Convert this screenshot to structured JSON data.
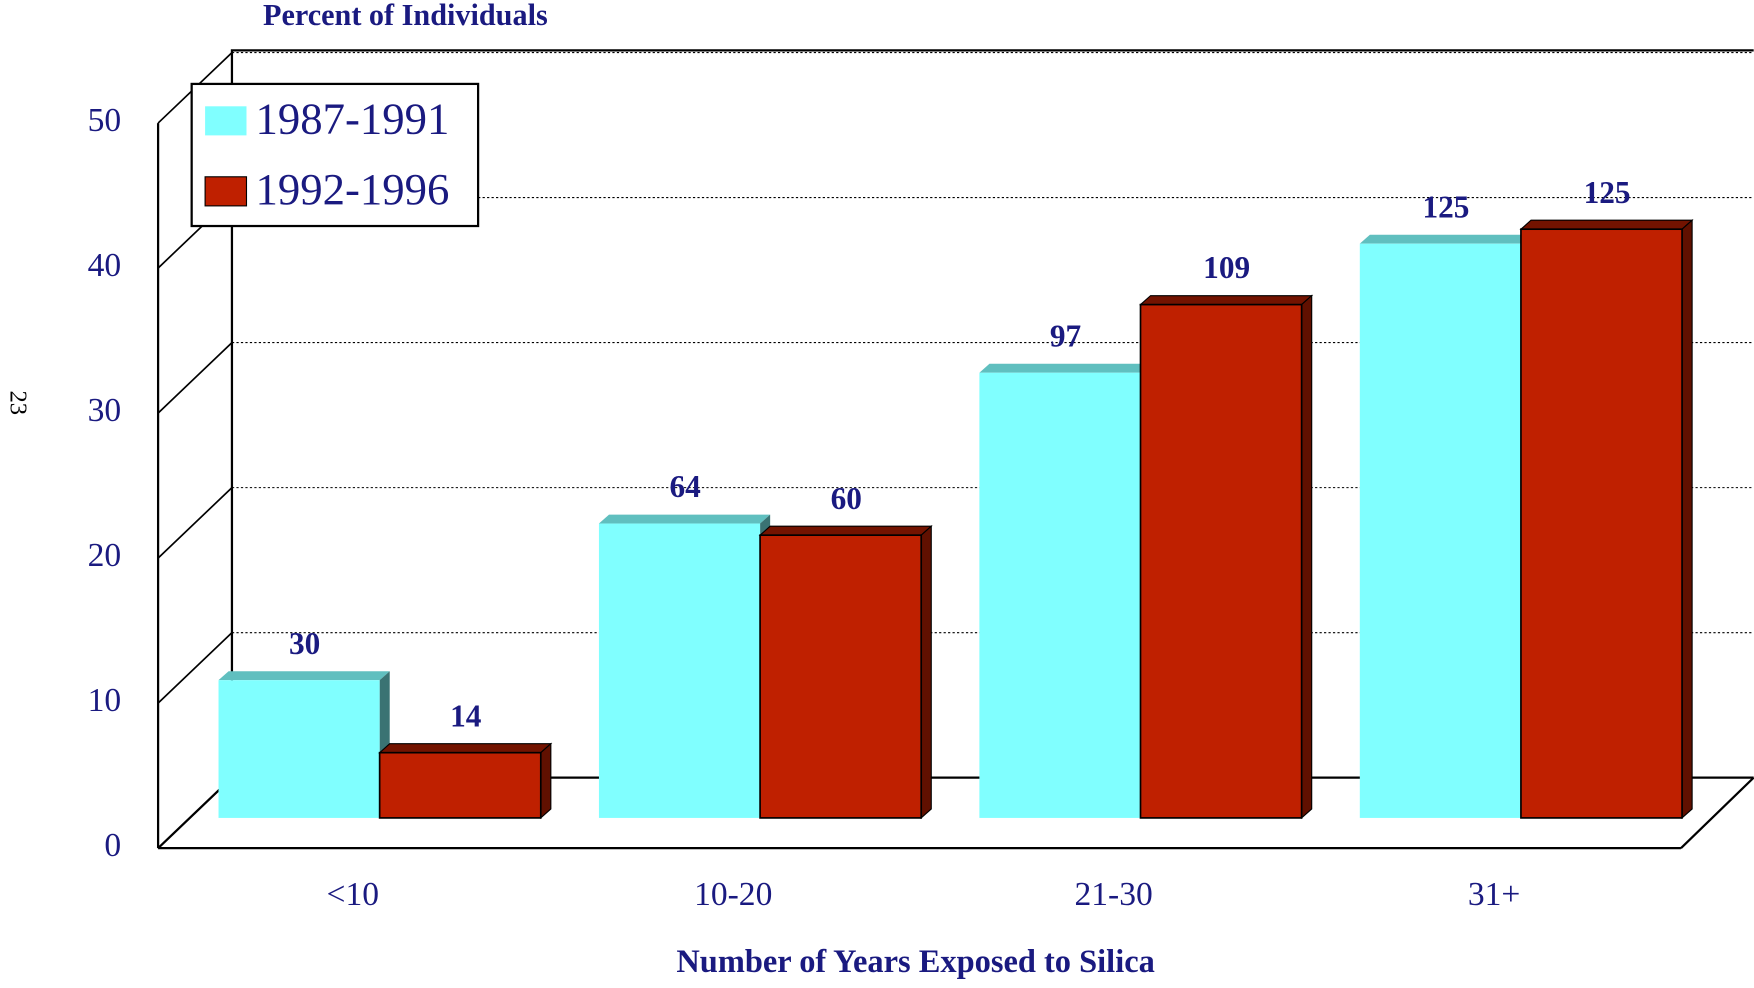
{
  "chart_data": {
    "type": "bar3d",
    "y_title": "Percent of Individuals",
    "x_title": "Number of Years Exposed to Silica",
    "side_label": "23",
    "categories": [
      "<10",
      "10-20",
      "21-30",
      "31+"
    ],
    "series": [
      {
        "name": "1987-1991",
        "color": "#80ffff",
        "values": [
          9.5,
          20.3,
          30.7,
          39.6
        ],
        "counts": [
          30,
          64,
          97,
          125
        ]
      },
      {
        "name": "1992-1996",
        "color": "#bf2000",
        "values": [
          4.5,
          19.5,
          35.4,
          40.6
        ],
        "counts": [
          14,
          60,
          109,
          125
        ]
      }
    ],
    "ylim": [
      0,
      50
    ],
    "yticks": [
      0,
      10,
      20,
      30,
      40,
      50
    ],
    "grid": true,
    "legend": "top-left"
  }
}
